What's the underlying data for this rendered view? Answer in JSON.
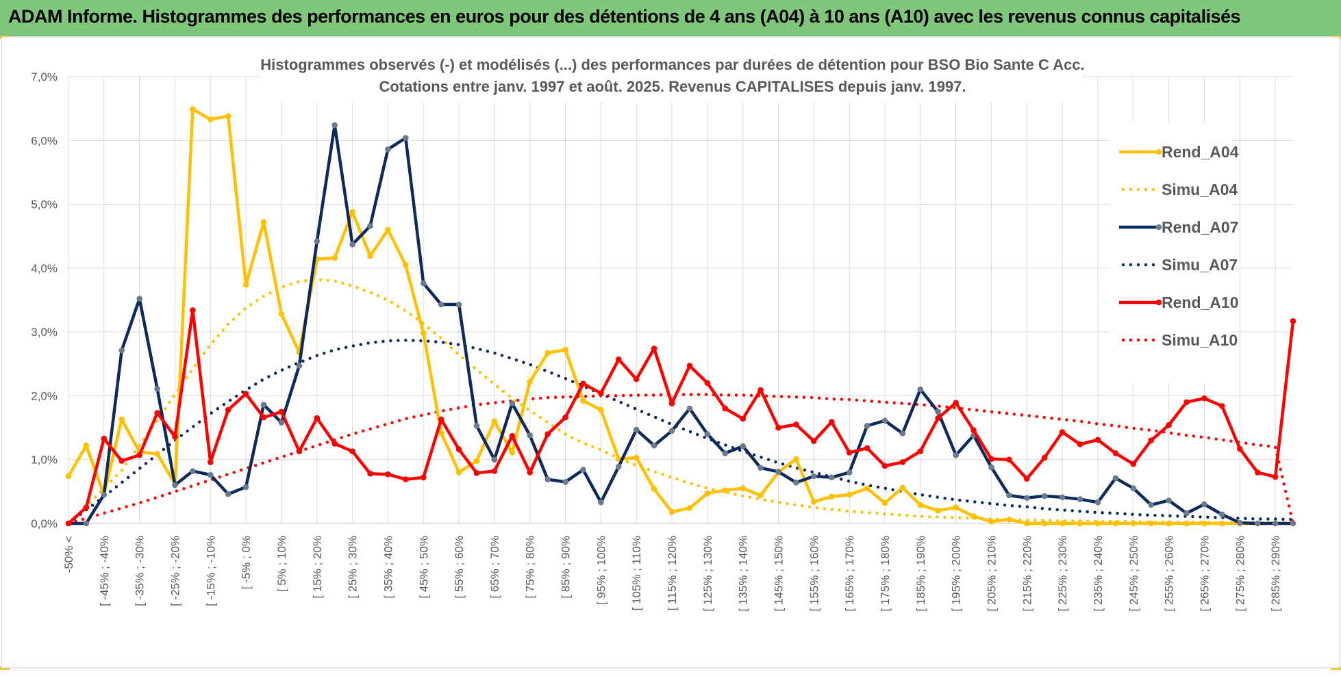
{
  "banner": {
    "title": "ADAM Informe. Histogrammes des performances en euros pour des détentions de 4 ans (A04) à 10 ans (A10) avec les revenus connus capitalisés"
  },
  "colors": {
    "banner_bg": "#7ec77b",
    "A04": "#ffc000",
    "A07": "#0e2a5c",
    "A10": "#ff0000",
    "grid": "#d9d9d9",
    "marker_A07": "#6b7b8c"
  },
  "chart_data": {
    "type": "line",
    "title": "Histogrammes observés (-) et modélisés (...) des performances par durées de détention pour BSO Bio Sante C Acc.",
    "subtitle": "Cotations entre janv. 1997 et août. 2025. Revenus CAPITALISES depuis janv. 1997.",
    "xlabel": "",
    "ylabel": "",
    "ylim": [
      0,
      7
    ],
    "yticks": [
      "0,0%",
      "1,0%",
      "2,0%",
      "3,0%",
      "4,0%",
      "5,0%",
      "6,0%",
      "7,0%"
    ],
    "x_tick_labels": [
      "-50% <",
      "[ -45% ; -40%",
      "[ -35% ; -30%",
      "[ -25% ; -20%",
      "[ -15% ; -10%",
      "[ -5% ; 0%",
      "[ 5% ; 10%",
      "[ 15% ; 20%",
      "[ 25% ; 30%",
      "[ 35% ; 40%",
      "[ 45% ; 50%",
      "[ 55% ; 60%",
      "[ 65% ; 70%",
      "[ 75% ; 80%",
      "[ 85% ; 90%",
      "[ 95% ; 100%",
      "[ 105% ; 110%",
      "[ 115% ; 120%",
      "[ 125% ; 130%",
      "[ 135% ; 140%",
      "[ 145% ; 150%",
      "[ 155% ; 160%",
      "[ 165% ; 170%",
      "[ 175% ; 180%",
      "[ 185% ; 190%",
      "[ 195% ; 200%",
      "[ 205% ; 210%",
      "[ 215% ; 220%",
      "[ 225% ; 230%",
      "[ 235% ; 240%",
      "[ 245% ; 250%",
      "[ 255% ; 260%",
      "[ 265% ; 270%",
      "[ 275% ; 280%",
      "[ 285% ; 290%"
    ],
    "num_points": 70,
    "grid": true,
    "legend_position": "right",
    "series": [
      {
        "name": "Rend_A04",
        "style": "solid",
        "color": "#ffc000",
        "values": [
          0.74,
          1.22,
          0.45,
          1.63,
          1.12,
          1.09,
          0.62,
          6.49,
          6.33,
          6.38,
          3.74,
          4.72,
          3.28,
          2.68,
          4.14,
          4.16,
          4.88,
          4.19,
          4.6,
          4.05,
          2.98,
          1.42,
          0.8,
          0.98,
          1.6,
          1.11,
          2.22,
          2.67,
          2.72,
          1.92,
          1.78,
          1.01,
          1.03,
          0.54,
          0.18,
          0.24,
          0.47,
          0.52,
          0.55,
          0.44,
          0.8,
          1.01,
          0.34,
          0.42,
          0.45,
          0.55,
          0.32,
          0.56,
          0.29,
          0.2,
          0.25,
          0.11,
          0.03,
          0.06,
          0.0,
          0.0,
          0.0,
          0.0,
          0.0,
          0.0,
          0.0,
          0.0,
          0.0,
          0.0,
          0.0,
          0.0,
          0.0,
          0.0,
          0.0,
          0.0
        ]
      },
      {
        "name": "Simu_A04",
        "style": "dotted",
        "color": "#ffc000",
        "values": [
          0.0,
          0.27,
          0.55,
          0.83,
          1.23,
          1.62,
          2.02,
          2.42,
          2.8,
          3.12,
          3.38,
          3.56,
          3.7,
          3.79,
          3.82,
          3.8,
          3.72,
          3.62,
          3.5,
          3.33,
          3.13,
          2.9,
          2.64,
          2.41,
          2.18,
          1.96,
          1.77,
          1.58,
          1.4,
          1.26,
          1.15,
          1.02,
          0.91,
          0.81,
          0.72,
          0.63,
          0.55,
          0.49,
          0.43,
          0.38,
          0.33,
          0.29,
          0.25,
          0.22,
          0.19,
          0.17,
          0.15,
          0.13,
          0.11,
          0.1,
          0.09,
          0.08,
          0.07,
          0.06,
          0.05,
          0.05,
          0.04,
          0.04,
          0.03,
          0.03,
          0.03,
          0.02,
          0.02,
          0.02,
          0.02,
          0.01,
          0.01,
          0.01,
          0.01,
          0.01
        ]
      },
      {
        "name": "Rend_A07",
        "style": "solid",
        "color": "#0e2a5c",
        "values": [
          0.0,
          0.0,
          0.45,
          2.71,
          3.52,
          2.11,
          0.6,
          0.82,
          0.76,
          0.46,
          0.57,
          1.86,
          1.58,
          2.47,
          4.42,
          6.24,
          4.37,
          4.66,
          5.86,
          6.04,
          3.76,
          3.43,
          3.43,
          1.53,
          1.0,
          1.88,
          1.38,
          0.69,
          0.65,
          0.84,
          0.33,
          0.89,
          1.47,
          1.22,
          1.45,
          1.8,
          1.4,
          1.1,
          1.21,
          0.87,
          0.81,
          0.64,
          0.74,
          0.72,
          0.8,
          1.53,
          1.61,
          1.41,
          2.1,
          1.75,
          1.07,
          1.38,
          0.88,
          0.44,
          0.4,
          0.43,
          0.41,
          0.38,
          0.33,
          0.71,
          0.55,
          0.29,
          0.36,
          0.16,
          0.3,
          0.14,
          0.01,
          0.0,
          0.0,
          0.0
        ]
      },
      {
        "name": "Simu_A07",
        "style": "dotted",
        "color": "#0e2a5c",
        "values": [
          0.0,
          0.21,
          0.42,
          0.64,
          0.86,
          1.08,
          1.3,
          1.51,
          1.72,
          1.91,
          2.09,
          2.26,
          2.4,
          2.52,
          2.63,
          2.72,
          2.78,
          2.83,
          2.86,
          2.87,
          2.86,
          2.84,
          2.8,
          2.74,
          2.67,
          2.58,
          2.49,
          2.38,
          2.27,
          2.15,
          2.03,
          1.91,
          1.79,
          1.67,
          1.55,
          1.44,
          1.33,
          1.23,
          1.13,
          1.04,
          0.95,
          0.87,
          0.8,
          0.73,
          0.66,
          0.6,
          0.55,
          0.5,
          0.45,
          0.41,
          0.37,
          0.34,
          0.31,
          0.28,
          0.26,
          0.23,
          0.21,
          0.19,
          0.17,
          0.16,
          0.14,
          0.13,
          0.12,
          0.11,
          0.1,
          0.09,
          0.08,
          0.07,
          0.07,
          0.06
        ]
      },
      {
        "name": "Rend_A10",
        "style": "solid",
        "color": "#ff0000",
        "values": [
          0.0,
          0.25,
          1.33,
          0.98,
          1.07,
          1.73,
          1.36,
          3.34,
          0.96,
          1.78,
          2.03,
          1.66,
          1.75,
          1.13,
          1.65,
          1.25,
          1.13,
          0.78,
          0.77,
          0.69,
          0.72,
          1.63,
          1.16,
          0.79,
          0.82,
          1.37,
          0.8,
          1.4,
          1.66,
          2.19,
          2.04,
          2.57,
          2.26,
          2.74,
          1.88,
          2.47,
          2.2,
          1.8,
          1.64,
          2.09,
          1.5,
          1.55,
          1.29,
          1.59,
          1.11,
          1.18,
          0.9,
          0.96,
          1.13,
          1.65,
          1.89,
          1.46,
          1.01,
          1.0,
          0.7,
          1.03,
          1.43,
          1.24,
          1.31,
          1.1,
          0.93,
          1.3,
          1.54,
          1.9,
          1.96,
          1.84,
          1.17,
          0.8,
          0.73,
          3.17
        ]
      },
      {
        "name": "Simu_A10",
        "style": "dotted",
        "color": "#ff0000",
        "values": [
          0.0,
          0.08,
          0.16,
          0.24,
          0.32,
          0.41,
          0.5,
          0.59,
          0.68,
          0.77,
          0.86,
          0.95,
          1.04,
          1.13,
          1.22,
          1.31,
          1.4,
          1.48,
          1.56,
          1.64,
          1.7,
          1.76,
          1.81,
          1.86,
          1.89,
          1.92,
          1.95,
          1.97,
          1.98,
          1.99,
          2.0,
          2.0,
          2.01,
          2.01,
          2.02,
          2.02,
          2.02,
          2.01,
          2.01,
          2.0,
          1.99,
          1.98,
          1.97,
          1.95,
          1.94,
          1.92,
          1.9,
          1.88,
          1.86,
          1.84,
          1.81,
          1.78,
          1.75,
          1.72,
          1.69,
          1.66,
          1.63,
          1.6,
          1.56,
          1.53,
          1.49,
          1.46,
          1.42,
          1.38,
          1.35,
          1.31,
          1.27,
          1.23,
          1.2,
          0.0
        ]
      }
    ]
  }
}
